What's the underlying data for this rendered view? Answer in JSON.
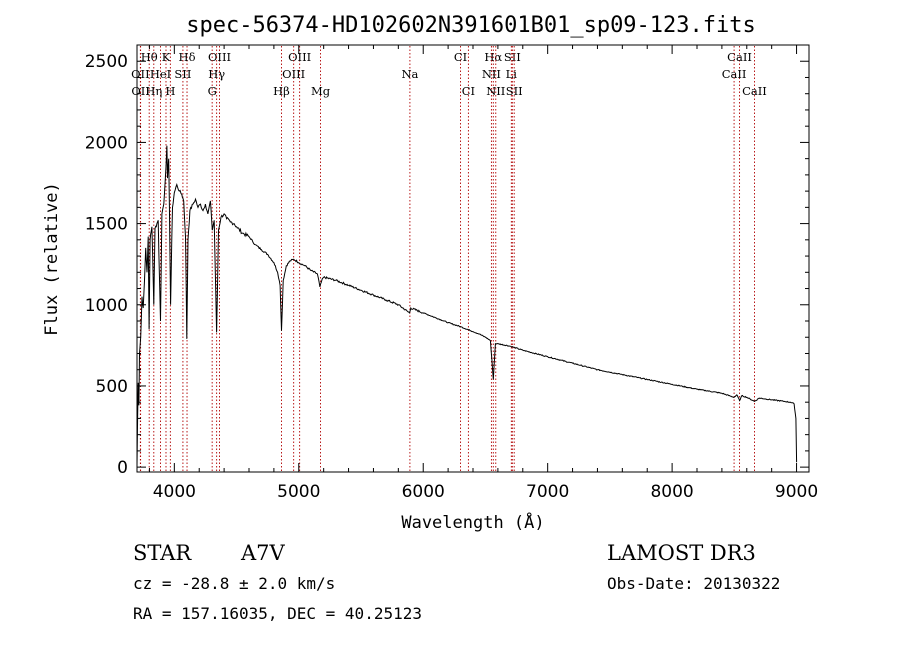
{
  "chart_data": {
    "type": "line",
    "title": "spec-56374-HD102602N391601B01_sp09-123.fits",
    "xlabel": "Wavelength (Å)",
    "ylabel": "Flux (relative)",
    "xlim": [
      3700,
      9100
    ],
    "ylim": [
      -30,
      2600
    ],
    "xticks": [
      4000,
      5000,
      6000,
      7000,
      8000,
      9000
    ],
    "yticks": [
      0,
      500,
      1000,
      1500,
      2000,
      2500
    ],
    "series": [
      {
        "name": "flux",
        "points": [
          [
            3700,
            10
          ],
          [
            3705,
            300
          ],
          [
            3710,
            520
          ],
          [
            3715,
            380
          ],
          [
            3720,
            700
          ],
          [
            3730,
            800
          ],
          [
            3740,
            1050
          ],
          [
            3750,
            980
          ],
          [
            3760,
            1150
          ],
          [
            3770,
            1350
          ],
          [
            3780,
            1200
          ],
          [
            3790,
            1420
          ],
          [
            3797,
            850
          ],
          [
            3805,
            1400
          ],
          [
            3820,
            1480
          ],
          [
            3835,
            1000
          ],
          [
            3845,
            1470
          ],
          [
            3860,
            1500
          ],
          [
            3870,
            1520
          ],
          [
            3889,
            900
          ],
          [
            3900,
            1560
          ],
          [
            3915,
            1620
          ],
          [
            3933,
            1850
          ],
          [
            3940,
            1980
          ],
          [
            3945,
            1780
          ],
          [
            3955,
            1900
          ],
          [
            3970,
            1000
          ],
          [
            3985,
            1600
          ],
          [
            4000,
            1690
          ],
          [
            4020,
            1740
          ],
          [
            4040,
            1700
          ],
          [
            4060,
            1680
          ],
          [
            4075,
            1640
          ],
          [
            4090,
            1420
          ],
          [
            4100,
            790
          ],
          [
            4110,
            1400
          ],
          [
            4125,
            1580
          ],
          [
            4150,
            1620
          ],
          [
            4170,
            1650
          ],
          [
            4190,
            1600
          ],
          [
            4210,
            1620
          ],
          [
            4230,
            1580
          ],
          [
            4250,
            1620
          ],
          [
            4270,
            1560
          ],
          [
            4290,
            1640
          ],
          [
            4305,
            1460
          ],
          [
            4320,
            1520
          ],
          [
            4340,
            830
          ],
          [
            4355,
            1460
          ],
          [
            4375,
            1540
          ],
          [
            4400,
            1560
          ],
          [
            4420,
            1530
          ],
          [
            4450,
            1510
          ],
          [
            4480,
            1500
          ],
          [
            4500,
            1480
          ],
          [
            4550,
            1440
          ],
          [
            4600,
            1420
          ],
          [
            4650,
            1370
          ],
          [
            4700,
            1340
          ],
          [
            4750,
            1310
          ],
          [
            4800,
            1260
          ],
          [
            4830,
            1200
          ],
          [
            4850,
            1120
          ],
          [
            4861,
            840
          ],
          [
            4875,
            1150
          ],
          [
            4900,
            1240
          ],
          [
            4930,
            1270
          ],
          [
            4960,
            1280
          ],
          [
            5000,
            1260
          ],
          [
            5050,
            1240
          ],
          [
            5100,
            1210
          ],
          [
            5150,
            1190
          ],
          [
            5170,
            1110
          ],
          [
            5185,
            1150
          ],
          [
            5200,
            1170
          ],
          [
            5300,
            1150
          ],
          [
            5400,
            1120
          ],
          [
            5500,
            1090
          ],
          [
            5600,
            1060
          ],
          [
            5700,
            1030
          ],
          [
            5800,
            1000
          ],
          [
            5890,
            950
          ],
          [
            5900,
            980
          ],
          [
            6000,
            950
          ],
          [
            6100,
            920
          ],
          [
            6200,
            890
          ],
          [
            6300,
            865
          ],
          [
            6400,
            835
          ],
          [
            6450,
            820
          ],
          [
            6500,
            800
          ],
          [
            6540,
            780
          ],
          [
            6563,
            540
          ],
          [
            6580,
            760
          ],
          [
            6600,
            760
          ],
          [
            6700,
            745
          ],
          [
            6800,
            720
          ],
          [
            7000,
            680
          ],
          [
            7200,
            640
          ],
          [
            7400,
            600
          ],
          [
            7600,
            570
          ],
          [
            7800,
            540
          ],
          [
            8000,
            510
          ],
          [
            8200,
            480
          ],
          [
            8400,
            455
          ],
          [
            8498,
            430
          ],
          [
            8520,
            445
          ],
          [
            8542,
            410
          ],
          [
            8560,
            440
          ],
          [
            8600,
            430
          ],
          [
            8662,
            405
          ],
          [
            8700,
            425
          ],
          [
            8800,
            415
          ],
          [
            8900,
            405
          ],
          [
            8950,
            400
          ],
          [
            8980,
            390
          ],
          [
            8995,
            300
          ],
          [
            9000,
            30
          ]
        ]
      }
    ],
    "lines": [
      {
        "label": "Hβ",
        "wavelength": 4861,
        "row": 3
      },
      {
        "label": "Mg",
        "wavelength": 5175,
        "row": 3
      },
      {
        "label": "Na",
        "wavelength": 5893,
        "row": 2
      },
      {
        "label": "CI",
        "wavelength": 6300,
        "row": 1
      },
      {
        "label": "CI",
        "wavelength": 6363,
        "row": 3
      },
      {
        "label": "CaII",
        "wavelength": 8542,
        "row": 1
      },
      {
        "label": "CaII",
        "wavelength": 8498,
        "row": 2
      },
      {
        "label": "CaII",
        "wavelength": 8662,
        "row": 3
      }
    ],
    "line_label_texts": [
      {
        "label": "Hθ",
        "wavelength": 3798,
        "row": 1
      },
      {
        "label": "K",
        "wavelength": 3933,
        "row": 1
      },
      {
        "label": "Hδ",
        "wavelength": 4102,
        "row": 1
      },
      {
        "label": "OIII",
        "wavelength": 4363,
        "row": 1
      },
      {
        "label": "OIII",
        "wavelength": 5007,
        "row": 1
      },
      {
        "label": "Hα",
        "wavelength": 6563,
        "row": 1
      },
      {
        "label": "SII",
        "wavelength": 6716,
        "row": 1
      },
      {
        "label": "OII",
        "wavelength": 3727,
        "row": 2
      },
      {
        "label": "HeI",
        "wavelength": 3889,
        "row": 2
      },
      {
        "label": "SII",
        "wavelength": 4069,
        "row": 2
      },
      {
        "label": "Hγ",
        "wavelength": 4340,
        "row": 2
      },
      {
        "label": "OIII",
        "wavelength": 4959,
        "row": 2
      },
      {
        "label": "NII",
        "wavelength": 6548,
        "row": 2
      },
      {
        "label": "Li",
        "wavelength": 6708,
        "row": 2
      },
      {
        "label": "OII",
        "wavelength": 3729,
        "row": 3
      },
      {
        "label": "Hη",
        "wavelength": 3835,
        "row": 3
      },
      {
        "label": "H",
        "wavelength": 3968,
        "row": 3
      },
      {
        "label": "G",
        "wavelength": 4304,
        "row": 3
      },
      {
        "label": "NII",
        "wavelength": 6583,
        "row": 3
      },
      {
        "label": "SII",
        "wavelength": 6731,
        "row": 3
      }
    ]
  },
  "info": {
    "object_class": "STAR",
    "subclass": "A7V",
    "survey": "LAMOST DR3",
    "redshift": "cz = -28.8 ± 2.0 km/s",
    "obs_date": "Obs-Date: 20130322",
    "coords": "RA = 157.16035, DEC =  40.25123"
  }
}
